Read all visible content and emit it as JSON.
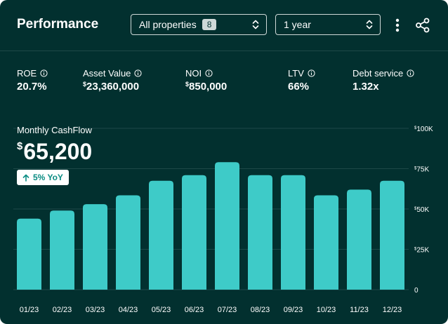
{
  "header": {
    "title": "Performance",
    "property_select": {
      "label": "All properties",
      "count": "8"
    },
    "period_select": {
      "label": "1 year"
    }
  },
  "metrics": [
    {
      "label": "ROE",
      "value": "20.7%",
      "prefix": ""
    },
    {
      "label": "Asset Value",
      "value": "23,360,000",
      "prefix": "$"
    },
    {
      "label": "NOI",
      "value": "850,000",
      "prefix": "$"
    },
    {
      "label": "LTV",
      "value": "66%",
      "prefix": ""
    },
    {
      "label": "Debt service",
      "value": "1.32x",
      "prefix": ""
    }
  ],
  "cashflow": {
    "label": "Monthly CashFlow",
    "currency": "$",
    "amount": "65,200",
    "yoy_text": "5% YoY"
  },
  "colors": {
    "background": "#02302f",
    "bar": "#3ecbc8",
    "grid": "#1d4948",
    "text": "#ffffff"
  },
  "chart_data": {
    "type": "bar",
    "categories": [
      "01/23",
      "02/23",
      "03/23",
      "04/23",
      "05/23",
      "06/23",
      "07/23",
      "08/23",
      "09/23",
      "10/23",
      "11/23",
      "12/23"
    ],
    "values": [
      44000,
      49000,
      53000,
      58500,
      67500,
      71000,
      79000,
      71000,
      71000,
      58500,
      62000,
      67500
    ],
    "ylim": [
      0,
      100000
    ],
    "yticks": [
      {
        "value": 100000,
        "prefix": "$",
        "text": "100K"
      },
      {
        "value": 75000,
        "prefix": "$",
        "text": "75K"
      },
      {
        "value": 50000,
        "prefix": "$",
        "text": "50K"
      },
      {
        "value": 25000,
        "prefix": "$",
        "text": "25K"
      },
      {
        "value": 0,
        "prefix": "",
        "text": "0"
      }
    ],
    "grid": true
  }
}
